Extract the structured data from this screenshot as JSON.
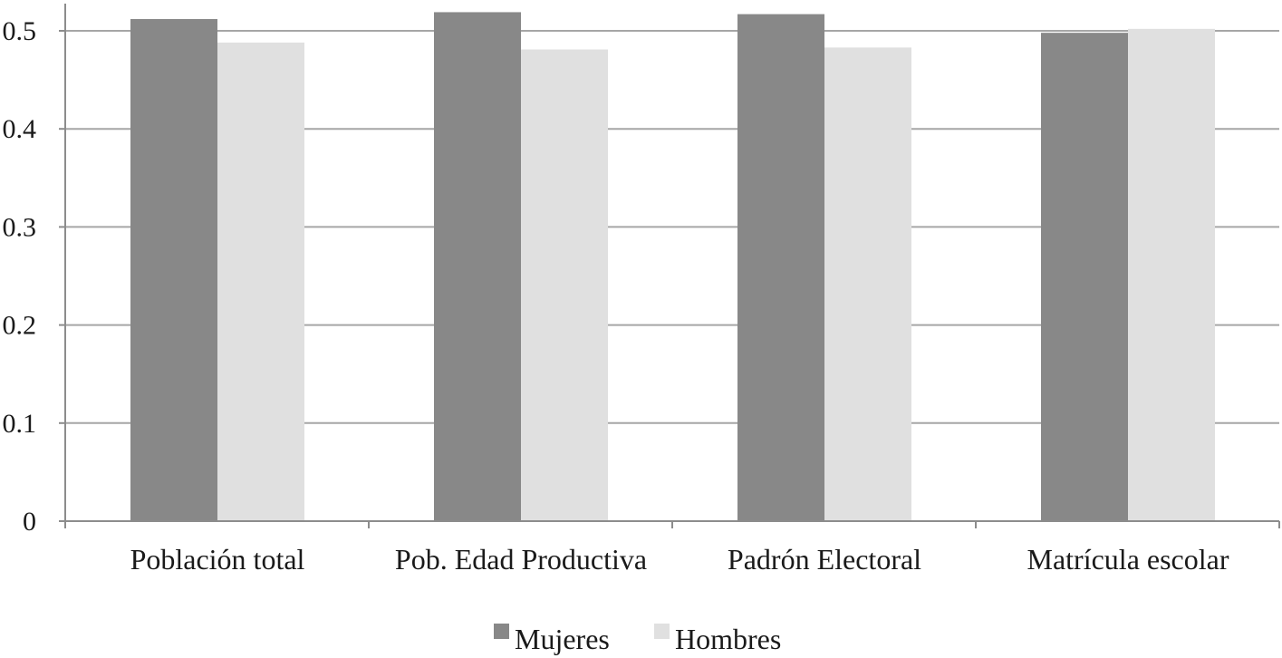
{
  "chart_data": {
    "type": "bar",
    "categories": [
      "Población total",
      "Pob. Edad Productiva",
      "Padrón Electoral",
      "Matrícula escolar"
    ],
    "series": [
      {
        "name": "Mujeres",
        "color": "#888888",
        "values": [
          0.512,
          0.519,
          0.517,
          0.498
        ]
      },
      {
        "name": "Hombres",
        "color": "#e0e0e0",
        "values": [
          0.488,
          0.481,
          0.483,
          0.502
        ]
      }
    ],
    "ylim": [
      0,
      0.5
    ],
    "yticks": [
      {
        "value": 0,
        "label": "0"
      },
      {
        "value": 0.1,
        "label": "0.1"
      },
      {
        "value": 0.2,
        "label": "0.2"
      },
      {
        "value": 0.3,
        "label": "0.3"
      },
      {
        "value": 0.4,
        "label": "0.4"
      },
      {
        "value": 0.5,
        "label": "0.5"
      }
    ],
    "grid": true,
    "legend_position": "bottom",
    "title": "",
    "xlabel": "",
    "ylabel": ""
  }
}
